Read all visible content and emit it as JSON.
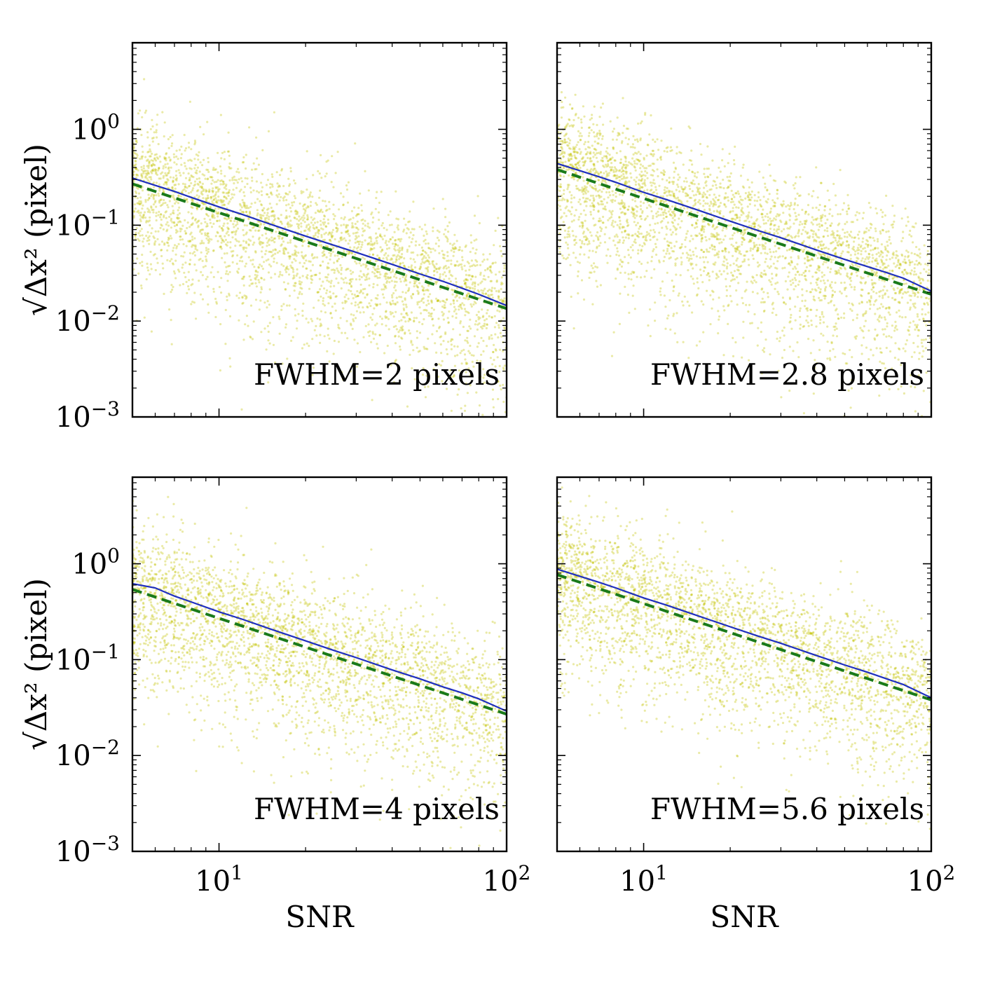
{
  "chart_data": [
    {
      "type": "scatter",
      "label": "FWHM=2 pixels",
      "xlabel": "",
      "ylabel": "√Δx² (pixel)",
      "xscale": "log",
      "yscale": "log",
      "xlim": [
        5,
        100
      ],
      "ylim": [
        0.001,
        8
      ],
      "x_ticks": [
        10,
        100
      ],
      "y_ticks": [
        0.001,
        0.01,
        0.1,
        1
      ],
      "x_tick_labels": [],
      "y_tick_labels": [
        "10^−3",
        "10^−2",
        "10^−1",
        "10^0"
      ],
      "fit": {
        "x": [
          5,
          100
        ],
        "y": [
          0.27,
          0.0135
        ]
      },
      "series": [
        {
          "style": "solid line",
          "color": "#1f2fbf",
          "x": [
            5,
            6,
            7,
            8,
            10,
            12,
            15,
            20,
            25,
            30,
            40,
            50,
            60,
            70,
            80,
            100
          ],
          "y": [
            0.31,
            0.26,
            0.225,
            0.195,
            0.155,
            0.13,
            0.103,
            0.077,
            0.062,
            0.052,
            0.039,
            0.031,
            0.026,
            0.022,
            0.019,
            0.0145
          ]
        },
        {
          "style": "dashed line",
          "color": "#1a7a1a",
          "x": [
            5,
            100
          ],
          "y": [
            0.27,
            0.0135
          ]
        }
      ]
    },
    {
      "type": "scatter",
      "label": "FWHM=2.8 pixels",
      "xlabel": "",
      "ylabel": "",
      "xscale": "log",
      "yscale": "log",
      "xlim": [
        5,
        100
      ],
      "ylim": [
        0.001,
        8
      ],
      "x_ticks": [
        10,
        100
      ],
      "y_ticks": [
        0.001,
        0.01,
        0.1,
        1
      ],
      "x_tick_labels": [],
      "y_tick_labels": [],
      "fit": {
        "x": [
          5,
          100
        ],
        "y": [
          0.38,
          0.019
        ]
      },
      "series": [
        {
          "style": "solid line",
          "color": "#1f2fbf",
          "x": [
            5,
            6,
            7,
            8,
            10,
            12,
            15,
            20,
            25,
            30,
            40,
            50,
            60,
            70,
            80,
            100
          ],
          "y": [
            0.44,
            0.37,
            0.32,
            0.28,
            0.22,
            0.185,
            0.148,
            0.11,
            0.088,
            0.074,
            0.055,
            0.044,
            0.037,
            0.032,
            0.028,
            0.0205
          ]
        },
        {
          "style": "dashed line",
          "color": "#1a7a1a",
          "x": [
            5,
            100
          ],
          "y": [
            0.38,
            0.019
          ]
        }
      ]
    },
    {
      "type": "scatter",
      "label": "FWHM=4 pixels",
      "xlabel": "SNR",
      "ylabel": "√Δx² (pixel)",
      "xscale": "log",
      "yscale": "log",
      "xlim": [
        5,
        100
      ],
      "ylim": [
        0.001,
        8
      ],
      "x_ticks": [
        10,
        100
      ],
      "y_ticks": [
        0.001,
        0.01,
        0.1,
        1
      ],
      "x_tick_labels": [
        "10^1",
        "10^2"
      ],
      "y_tick_labels": [
        "10^−3",
        "10^−2",
        "10^−1",
        "10^0"
      ],
      "fit": {
        "x": [
          5,
          100
        ],
        "y": [
          0.54,
          0.027
        ]
      },
      "series": [
        {
          "style": "solid line",
          "color": "#1f2fbf",
          "x": [
            5,
            6,
            7,
            8,
            10,
            12,
            15,
            20,
            25,
            30,
            40,
            50,
            60,
            70,
            80,
            100
          ],
          "y": [
            0.62,
            0.56,
            0.46,
            0.4,
            0.315,
            0.265,
            0.21,
            0.157,
            0.125,
            0.105,
            0.078,
            0.063,
            0.052,
            0.045,
            0.039,
            0.029
          ]
        },
        {
          "style": "dashed line",
          "color": "#1a7a1a",
          "x": [
            5,
            100
          ],
          "y": [
            0.54,
            0.027
          ]
        }
      ]
    },
    {
      "type": "scatter",
      "label": "FWHM=5.6 pixels",
      "xlabel": "SNR",
      "ylabel": "",
      "xscale": "log",
      "yscale": "log",
      "xlim": [
        5,
        100
      ],
      "ylim": [
        0.001,
        8
      ],
      "x_ticks": [
        10,
        100
      ],
      "y_ticks": [
        0.001,
        0.01,
        0.1,
        1
      ],
      "x_tick_labels": [
        "10^1",
        "10^2"
      ],
      "y_tick_labels": [],
      "fit": {
        "x": [
          5,
          100
        ],
        "y": [
          0.77,
          0.038
        ]
      },
      "series": [
        {
          "style": "solid line",
          "color": "#1f2fbf",
          "x": [
            5,
            6,
            7,
            8,
            10,
            12,
            15,
            20,
            25,
            30,
            40,
            50,
            60,
            70,
            80,
            100
          ],
          "y": [
            0.88,
            0.74,
            0.64,
            0.56,
            0.44,
            0.37,
            0.295,
            0.22,
            0.176,
            0.148,
            0.11,
            0.088,
            0.074,
            0.063,
            0.055,
            0.04
          ]
        },
        {
          "style": "dashed line",
          "color": "#1a7a1a",
          "x": [
            5,
            100
          ],
          "y": [
            0.77,
            0.038
          ]
        }
      ]
    }
  ],
  "colors": {
    "scatter_points": "#c4c400",
    "median_line": "#1f2fbf",
    "fit_line": "#1a7a1a",
    "axes": "#000000"
  }
}
